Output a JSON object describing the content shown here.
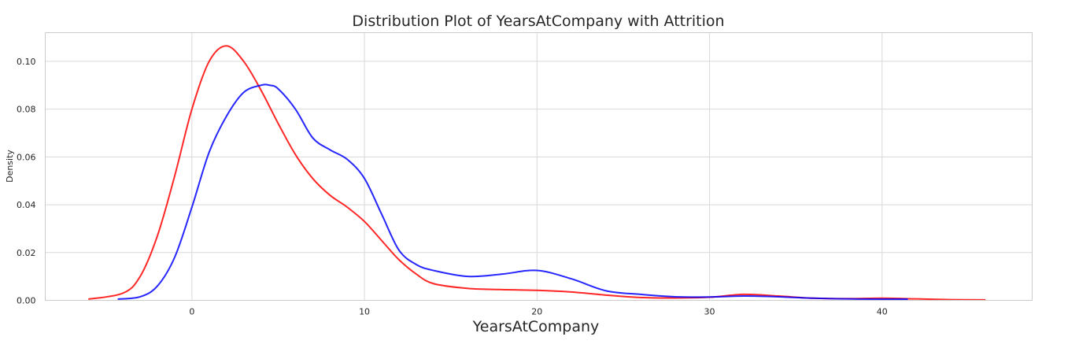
{
  "chart_data": {
    "type": "line",
    "title": "Distribution Plot of YearsAtCompany with Attrition",
    "xlabel": "YearsAtCompany",
    "ylabel": "Density",
    "xlim": [
      -8.5,
      48.7
    ],
    "ylim": [
      0,
      0.112
    ],
    "grid": true,
    "xticks": [
      0,
      10,
      20,
      30,
      40
    ],
    "xtick_labels": [
      "0",
      "10",
      "20",
      "30",
      "40"
    ],
    "yticks": [
      0.0,
      0.02,
      0.04,
      0.06,
      0.08,
      0.1
    ],
    "ytick_labels": [
      "0.00",
      "0.02",
      "0.04",
      "0.06",
      "0.08",
      "0.10"
    ],
    "series": [
      {
        "color": "#ff0000",
        "x": [
          -6,
          -4,
          -3,
          -2,
          -1,
          0,
          1,
          2,
          3,
          4,
          5,
          6,
          7,
          8,
          9,
          10,
          11,
          12,
          13,
          14,
          16,
          18,
          20,
          22,
          24,
          26,
          28,
          30,
          32,
          34,
          36,
          38,
          40,
          42,
          44,
          46
        ],
        "y": [
          0.0005,
          0.003,
          0.01,
          0.027,
          0.052,
          0.08,
          0.1,
          0.1065,
          0.1,
          0.088,
          0.074,
          0.061,
          0.051,
          0.044,
          0.039,
          0.033,
          0.025,
          0.017,
          0.011,
          0.007,
          0.005,
          0.0045,
          0.0042,
          0.0035,
          0.0022,
          0.0012,
          0.001,
          0.0013,
          0.0025,
          0.0018,
          0.0009,
          0.0007,
          0.0009,
          0.0006,
          0.0003,
          0.0002
        ]
      },
      {
        "color": "#0000ff",
        "x": [
          -4.3,
          -3,
          -2,
          -1,
          0,
          1,
          2,
          3,
          4,
          4.5,
          5,
          6,
          7,
          8,
          9,
          10,
          11,
          12,
          13,
          14,
          16,
          18,
          20,
          22,
          24,
          26,
          28,
          30,
          32,
          34,
          36,
          38,
          40,
          41.5
        ],
        "y": [
          0.0005,
          0.0015,
          0.006,
          0.018,
          0.039,
          0.062,
          0.077,
          0.087,
          0.09,
          0.09,
          0.0885,
          0.08,
          0.068,
          0.063,
          0.059,
          0.051,
          0.036,
          0.021,
          0.015,
          0.0125,
          0.01,
          0.011,
          0.0125,
          0.009,
          0.004,
          0.0025,
          0.0015,
          0.0014,
          0.0018,
          0.0015,
          0.0009,
          0.0006,
          0.0005,
          0.0005
        ]
      }
    ]
  }
}
